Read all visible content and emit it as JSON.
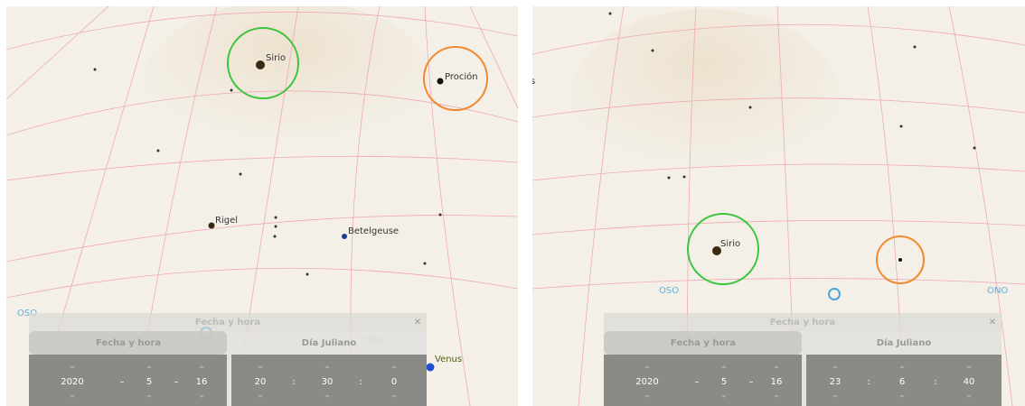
{
  "panels": [
    {
      "labels": [
        "Sirio",
        "Proción",
        "Rigel",
        "Betelgeuse",
        "Venus"
      ],
      "compass": [
        "OSO",
        "ONO"
      ],
      "dialog": {
        "title": "Fecha y hora",
        "tabs": [
          "Fecha y hora",
          "Día Juliano"
        ],
        "date": [
          2020,
          "–",
          5,
          "–",
          16
        ],
        "time": [
          20,
          ":",
          30,
          ":",
          0
        ]
      }
    },
    {
      "labels": [
        "s",
        "Sirio"
      ],
      "compass": [
        "OSO",
        "ONO"
      ],
      "dialog": {
        "title": "Fecha y hora",
        "tabs": [
          "Fecha y hora",
          "Día Juliano"
        ],
        "date": [
          2020,
          "–",
          5,
          "–",
          16
        ],
        "time": [
          23,
          ":",
          6,
          ":",
          40
        ]
      }
    }
  ]
}
